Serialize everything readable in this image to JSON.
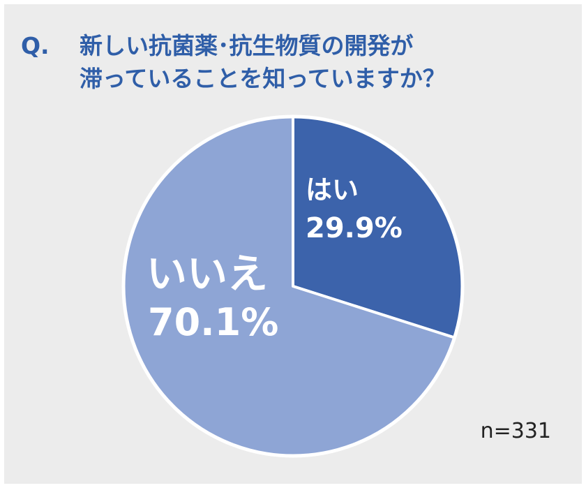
{
  "question": {
    "prefix": "Q.",
    "line1": "新しい抗菌薬･抗生物質の開発が",
    "line2": "滞っていることを知っていますか？"
  },
  "sample": "n=331",
  "chart_data": {
    "type": "pie",
    "start_angle_deg": 0,
    "direction": "clockwise",
    "slices": [
      {
        "label": "はい",
        "value": 29.9,
        "display": "29.9%",
        "color": "#3c63ab"
      },
      {
        "label": "いいえ",
        "value": 70.1,
        "display": "70.1%",
        "color": "#8ea5d5"
      }
    ],
    "edge_color": "#ffffff",
    "legend": "none"
  }
}
